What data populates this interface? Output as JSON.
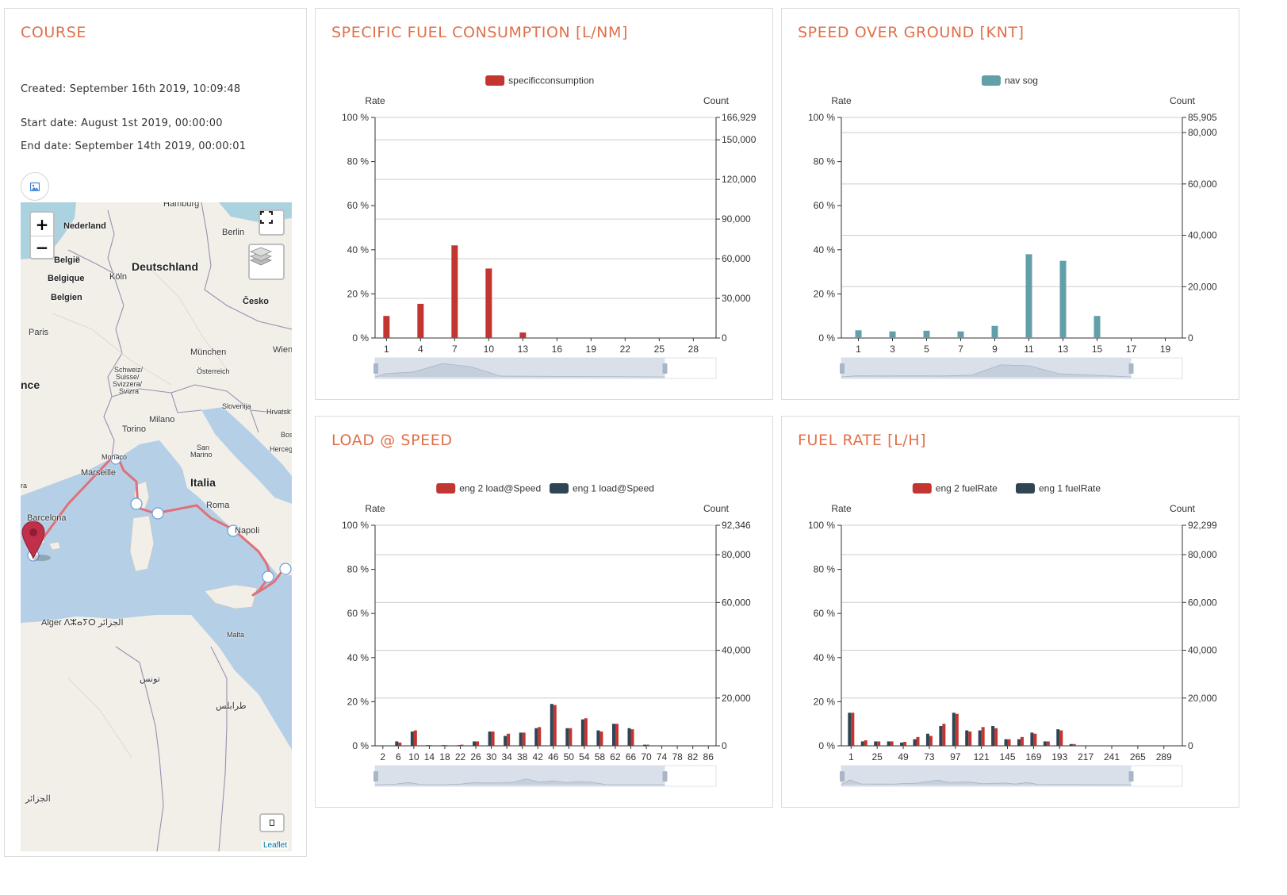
{
  "course": {
    "title": "COURSE",
    "created": "Created: September 16th 2019, 10:09:48",
    "start": "Start date: August 1st 2019, 00:00:00",
    "end": "End date: September 14th 2019, 00:00:01",
    "map": {
      "zoom_in": "+",
      "zoom_out": "−",
      "attribution": "Leaflet",
      "labels": [
        {
          "text": "Hamburg",
          "kind": "city"
        },
        {
          "text": "Nederland",
          "kind": "bold"
        },
        {
          "text": "Berlin",
          "kind": "city"
        },
        {
          "text": "België",
          "kind": "bold"
        },
        {
          "text": "Deutschland",
          "kind": "country"
        },
        {
          "text": "Belgique",
          "kind": "bold"
        },
        {
          "text": "Köln",
          "kind": "city"
        },
        {
          "text": "Belgien",
          "kind": "bold"
        },
        {
          "text": "Česko",
          "kind": "bold"
        },
        {
          "text": "Paris",
          "kind": "city"
        },
        {
          "text": "München",
          "kind": "city"
        },
        {
          "text": "Wien",
          "kind": "city"
        },
        {
          "text": "Österreich",
          "kind": "small"
        },
        {
          "text": "nce",
          "kind": "country"
        },
        {
          "text": "Schweiz/",
          "kind": "small"
        },
        {
          "text": "Suisse/",
          "kind": "small"
        },
        {
          "text": "Svizzera/",
          "kind": "small"
        },
        {
          "text": "Svizra",
          "kind": "small"
        },
        {
          "text": "Slovenija",
          "kind": "small"
        },
        {
          "text": "Hrvatsk",
          "kind": "small"
        },
        {
          "text": "Milano",
          "kind": "city"
        },
        {
          "text": "Torino",
          "kind": "city"
        },
        {
          "text": "Bos",
          "kind": "small"
        },
        {
          "text": "San",
          "kind": "small"
        },
        {
          "text": "Marino",
          "kind": "small"
        },
        {
          "text": "Herceg",
          "kind": "small"
        },
        {
          "text": "Monaco",
          "kind": "small"
        },
        {
          "text": "Marseille",
          "kind": "city"
        },
        {
          "text": "Italia",
          "kind": "country"
        },
        {
          "text": "ra",
          "kind": "small"
        },
        {
          "text": "Roma",
          "kind": "city"
        },
        {
          "text": "Barcelona",
          "kind": "city"
        },
        {
          "text": "Napoli",
          "kind": "city"
        },
        {
          "text": "Alger ⴷⵣⴰⵢⵔ الجزائر",
          "kind": "city"
        },
        {
          "text": "Malta",
          "kind": "small"
        },
        {
          "text": "تونس",
          "kind": "city"
        },
        {
          "text": "طرابلس",
          "kind": "city"
        },
        {
          "text": "الجزائر",
          "kind": "city"
        }
      ]
    }
  },
  "colors": {
    "title": "#e0704a",
    "red": "#c23531",
    "dark": "#2f4554",
    "teal": "#61a0a8"
  },
  "charts": [
    {
      "id": "sfc",
      "title": "SPECIFIC FUEL CONSUMPTION [L/NM]",
      "chart_data": {
        "type": "bar",
        "left_axis_name": "Rate",
        "right_axis_name": "Count",
        "left_ticks": [
          "100 %",
          "80 %",
          "60 %",
          "40 %",
          "20 %",
          "0 %"
        ],
        "right_max_label": "166,929",
        "right_max": 166929,
        "right_ticks": [
          150000,
          120000,
          90000,
          60000,
          30000,
          0
        ],
        "right_tick_labels": [
          "150,000",
          "120,000",
          "90,000",
          "60,000",
          "30,000",
          "0"
        ],
        "x_min": 0,
        "x_max": 30,
        "x_ticks": [
          1,
          4,
          7,
          10,
          13,
          16,
          19,
          22,
          25,
          28
        ],
        "x": [
          1,
          4,
          7,
          10,
          13
        ],
        "series": [
          {
            "name": "specificconsumption",
            "color": "#c23531",
            "values": [
              10,
              15.5,
              42,
              31.5,
              2.5
            ]
          }
        ]
      }
    },
    {
      "id": "sog",
      "title": "SPEED OVER GROUND [KNT]",
      "chart_data": {
        "type": "bar",
        "left_axis_name": "Rate",
        "right_axis_name": "Count",
        "left_ticks": [
          "100 %",
          "80 %",
          "60 %",
          "40 %",
          "20 %",
          "0 %"
        ],
        "right_max_label": "85,905",
        "right_max": 85905,
        "right_ticks": [
          80000,
          60000,
          40000,
          20000,
          0
        ],
        "right_tick_labels": [
          "80,000",
          "60,000",
          "40,000",
          "20,000",
          "0"
        ],
        "x_min": 0,
        "x_max": 20,
        "x_ticks": [
          1,
          3,
          5,
          7,
          9,
          11,
          13,
          15,
          17,
          19
        ],
        "x": [
          1,
          3,
          5,
          7,
          9,
          11,
          13,
          15
        ],
        "series": [
          {
            "name": "nav sog",
            "color": "#61a0a8",
            "values": [
              3.5,
              3,
              3.3,
              3,
              5.5,
              38,
              35,
              10
            ]
          }
        ]
      }
    },
    {
      "id": "load",
      "title": "LOAD @ SPEED",
      "chart_data": {
        "type": "bar",
        "left_axis_name": "Rate",
        "right_axis_name": "Count",
        "left_ticks": [
          "100 %",
          "80 %",
          "60 %",
          "40 %",
          "20 %",
          "0 %"
        ],
        "right_max_label": "92,346",
        "right_max": 92346,
        "right_ticks": [
          80000,
          60000,
          40000,
          20000,
          0
        ],
        "right_tick_labels": [
          "80,000",
          "60,000",
          "40,000",
          "20,000",
          "0"
        ],
        "x_min": 0,
        "x_max": 88,
        "x_ticks": [
          2,
          6,
          10,
          14,
          18,
          22,
          26,
          30,
          34,
          38,
          42,
          46,
          50,
          54,
          58,
          62,
          66,
          70,
          74,
          78,
          82,
          86
        ],
        "x": [
          6,
          10,
          14,
          18,
          22,
          26,
          30,
          34,
          38,
          42,
          46,
          50,
          54,
          58,
          62,
          66,
          70
        ],
        "series": [
          {
            "name": "eng 2 load@Speed",
            "color": "#c23531",
            "values": [
              1.5,
              7,
              0.3,
              0.3,
              0.5,
              2,
              6.5,
              5.5,
              6,
              8.5,
              18.5,
              8,
              12.5,
              6.5,
              10,
              7.5,
              0.5
            ]
          },
          {
            "name": "eng 1 load@Speed",
            "color": "#2f4554",
            "values": [
              2,
              6.5,
              0.3,
              0.3,
              0.3,
              2,
              6.5,
              4.5,
              6,
              8,
              19,
              8,
              12,
              7,
              10,
              8,
              0.5
            ]
          }
        ]
      }
    },
    {
      "id": "fuel",
      "title": "FUEL RATE [L/H]",
      "chart_data": {
        "type": "bar",
        "left_axis_name": "Rate",
        "right_axis_name": "Count",
        "left_ticks": [
          "100 %",
          "80 %",
          "60 %",
          "40 %",
          "20 %",
          "0 %"
        ],
        "right_max_label": "92,299",
        "right_max": 92299,
        "right_ticks": [
          80000,
          60000,
          40000,
          20000,
          0
        ],
        "right_tick_labels": [
          "80,000",
          "60,000",
          "40,000",
          "20,000",
          "0"
        ],
        "x_min": -8,
        "x_max": 306,
        "x_ticks": [
          1,
          25,
          49,
          73,
          97,
          121,
          145,
          169,
          193,
          217,
          241,
          265,
          289
        ],
        "x": [
          1,
          13,
          25,
          37,
          49,
          61,
          73,
          85,
          97,
          109,
          121,
          133,
          145,
          157,
          169,
          181,
          193,
          205
        ],
        "series": [
          {
            "name": "eng 2 fuelRate",
            "color": "#c23531",
            "values": [
              15,
              2.5,
              2,
              2,
              1.8,
              4,
              4.5,
              10,
              14.5,
              6.5,
              8.5,
              8,
              3,
              4,
              5.5,
              2,
              7,
              0.8
            ]
          },
          {
            "name": "eng 1 fuelRate",
            "color": "#2f4554",
            "values": [
              15,
              2,
              2,
              2,
              1.5,
              3,
              5.5,
              9,
              15,
              7,
              7,
              9,
              3,
              3,
              6,
              2,
              7.5,
              0.8
            ]
          }
        ]
      }
    }
  ]
}
